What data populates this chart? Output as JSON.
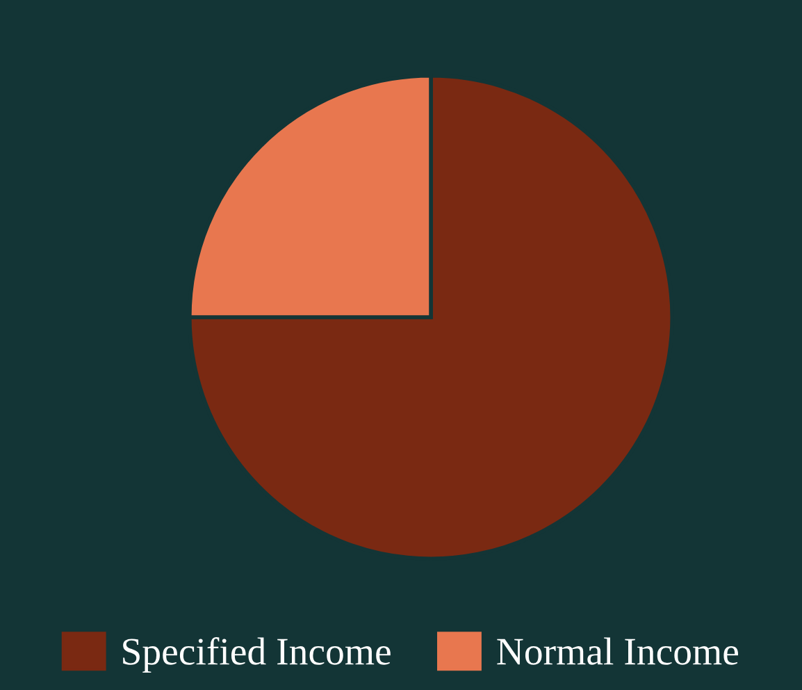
{
  "chart_data": {
    "type": "pie",
    "categories": [
      "Specified Income",
      "Normal Income"
    ],
    "values": [
      75,
      25
    ],
    "colors": [
      "#7a2912",
      "#e8774f"
    ],
    "legend": "bottom"
  }
}
